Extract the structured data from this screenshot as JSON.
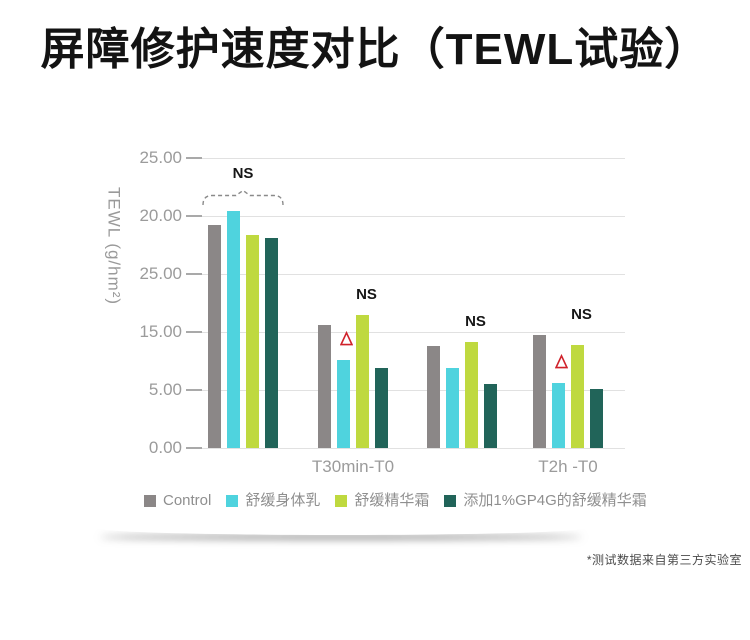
{
  "page": {
    "title": "屏障修护速度对比（TEWL试验）",
    "footnote": "*测试数据来自第三方实验室"
  },
  "chart_data": {
    "type": "bar",
    "title": "屏障修护速度对比（TEWL试验）",
    "ylabel": "TEWL (g/hm²)",
    "y_axis": {
      "tick_labels_displayed": [
        "25.00",
        "20.00",
        "25.00",
        "15.00",
        "5.00",
        "0.00"
      ],
      "range": [
        0,
        25
      ],
      "gridlines": true,
      "gridline_color": "#e1e1e1",
      "tick_color": "#a9a9a9",
      "label_color": "#9b9b9b"
    },
    "categories": [
      "",
      "T30min-T0",
      "",
      "T2h -T0"
    ],
    "series": [
      {
        "name": "Control",
        "color": "#8b8787",
        "values": [
          19.2,
          10.6,
          8.8,
          9.7
        ]
      },
      {
        "name": "舒缓身体乳",
        "color": "#4fd3de",
        "values": [
          20.4,
          7.6,
          6.9,
          5.6
        ]
      },
      {
        "name": "舒缓精华霜",
        "color": "#bfd93f",
        "values": [
          18.4,
          11.5,
          9.1,
          8.9
        ]
      },
      {
        "name": "添加1%GP4G的舒缓精华霜",
        "color": "#216459",
        "values": [
          18.1,
          6.9,
          5.5,
          5.1
        ]
      }
    ],
    "annotations": {
      "ns_label_text": "NS",
      "ns_groups": [
        0,
        1,
        2,
        3
      ],
      "bracket_groups": [
        0
      ],
      "bracket_style": "dashed",
      "delta_marker_color": "#d0222b",
      "delta_markers": [
        {
          "group": 1,
          "series": 1
        },
        {
          "group": 3,
          "series": 1
        }
      ]
    },
    "legend_position": "bottom"
  }
}
